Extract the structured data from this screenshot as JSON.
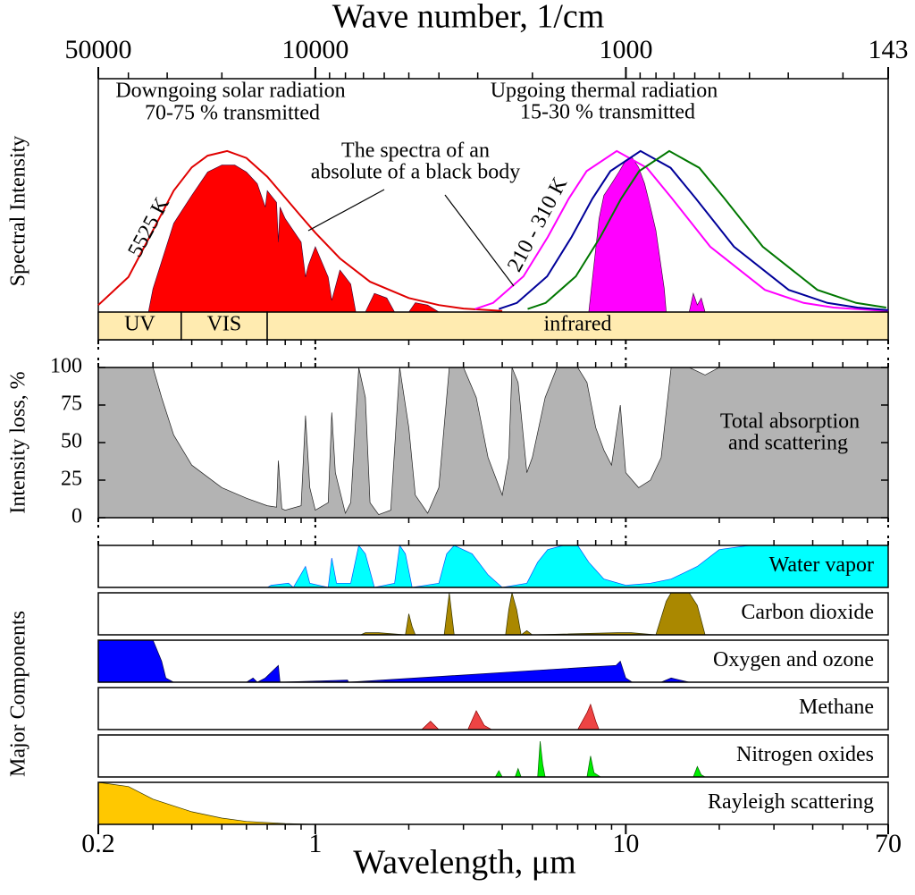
{
  "chart_data": [
    {
      "type": "axis",
      "xlabel": "Wave number, 1/cm",
      "xscale": "log",
      "xlim": [
        50000,
        143
      ],
      "xticks": [
        50000,
        10000,
        1000,
        143
      ],
      "minor_xticks": [
        40000,
        30000,
        20000,
        9000,
        8000,
        7000,
        6000,
        5000,
        4000,
        3000,
        2000,
        900,
        800,
        700,
        600,
        500,
        400,
        300,
        200
      ]
    },
    {
      "type": "spectrum",
      "ylabel": "Spectral Intensity",
      "xscale": "log",
      "xlim": [
        0.2,
        70
      ],
      "ylim": [
        0,
        1
      ],
      "annotations": [
        "Downgoing solar radiation",
        "70-75 % transmitted",
        "Upgoing thermal radiation",
        "15-30 % transmitted",
        "The spectra of an",
        "absolute of a black body",
        "5525 K",
        "210 - 310 K"
      ],
      "bands": [
        {
          "label": "UV",
          "from": 0.2,
          "to": 0.37
        },
        {
          "label": "VIS",
          "from": 0.37,
          "to": 0.7
        },
        {
          "label": "infrared",
          "from": 0.7,
          "to": 70
        }
      ],
      "band_color": "#ffebb0",
      "series": [
        {
          "style": "area",
          "color": "#ff0000",
          "x": [
            0.29,
            0.3,
            0.35,
            0.4,
            0.45,
            0.5,
            0.55,
            0.6,
            0.65,
            0.69,
            0.7,
            0.75,
            0.76,
            0.77,
            0.8,
            0.9,
            0.93,
            0.95,
            1.0,
            1.1,
            1.13,
            1.2,
            1.3,
            1.35,
            1.45,
            1.55,
            1.7,
            1.8,
            2.0,
            2.1,
            2.3,
            2.5
          ],
          "values": [
            0,
            0.1,
            0.38,
            0.5,
            0.6,
            0.63,
            0.63,
            0.6,
            0.55,
            0.45,
            0.52,
            0.47,
            0.3,
            0.45,
            0.4,
            0.3,
            0.15,
            0.2,
            0.28,
            0.15,
            0.05,
            0.18,
            0.12,
            0,
            0,
            0.08,
            0.06,
            0,
            0,
            0.04,
            0.03,
            0
          ]
        },
        {
          "style": "area",
          "color": "#ff00ff",
          "x": [
            7.6,
            8.2,
            8.5,
            9,
            9.5,
            10,
            10.5,
            11,
            11.5,
            12,
            12.5,
            13.3,
            13.5,
            16,
            16.5,
            17,
            17.5,
            18
          ],
          "values": [
            0,
            0.4,
            0.5,
            0.55,
            0.6,
            0.65,
            0.66,
            0.62,
            0.55,
            0.45,
            0.35,
            0.1,
            0,
            0,
            0.08,
            0.03,
            0.06,
            0
          ]
        },
        {
          "style": "line",
          "name": "5525 K",
          "color": "#e00000",
          "x": [
            0.2,
            0.25,
            0.3,
            0.35,
            0.4,
            0.45,
            0.52,
            0.6,
            0.7,
            0.8,
            0.9,
            1.0,
            1.2,
            1.5,
            2,
            2.5,
            3,
            4
          ],
          "values": [
            0.03,
            0.15,
            0.35,
            0.52,
            0.62,
            0.67,
            0.69,
            0.66,
            0.58,
            0.49,
            0.41,
            0.34,
            0.23,
            0.13,
            0.06,
            0.03,
            0.015,
            0.005
          ]
        },
        {
          "style": "line",
          "color": "#ff00ff",
          "x": [
            3.27,
            3.74,
            4.68,
            5.61,
            6.55,
            7.48,
            9.35,
            11.69,
            14.03,
            18.7,
            28.05,
            37.4,
            46.75,
            70
          ],
          "values": [
            0.013,
            0.039,
            0.153,
            0.322,
            0.486,
            0.604,
            0.69,
            0.618,
            0.49,
            0.28,
            0.095,
            0.039,
            0.019,
            0.004
          ]
        },
        {
          "style": "line",
          "color": "#000099",
          "x": [
            3.9,
            4.46,
            5.58,
            6.69,
            7.81,
            8.92,
            11.15,
            13.94,
            16.73,
            22.3,
            33.45,
            44.6,
            55.75,
            70
          ],
          "values": [
            0.013,
            0.039,
            0.153,
            0.322,
            0.486,
            0.604,
            0.69,
            0.618,
            0.49,
            0.28,
            0.095,
            0.039,
            0.019,
            0.008
          ]
        },
        {
          "style": "line",
          "color": "#007700",
          "x": [
            4.83,
            5.52,
            6.9,
            8.28,
            9.66,
            11.04,
            13.8,
            17.25,
            20.7,
            27.6,
            41.4,
            55.2,
            69
          ],
          "values": [
            0.013,
            0.039,
            0.153,
            0.322,
            0.486,
            0.604,
            0.69,
            0.618,
            0.49,
            0.28,
            0.095,
            0.039,
            0.019
          ]
        }
      ]
    },
    {
      "type": "area",
      "ylabel": "Intensity loss, %",
      "xscale": "log",
      "xlim": [
        0.2,
        70
      ],
      "ylim": [
        0,
        100
      ],
      "yticks": [
        0,
        25,
        50,
        75,
        100
      ],
      "color": "#b3b3b3",
      "annotations": [
        "Total absorption",
        "and scattering"
      ],
      "x": [
        0.2,
        0.3,
        0.32,
        0.35,
        0.4,
        0.5,
        0.6,
        0.7,
        0.75,
        0.76,
        0.78,
        0.8,
        0.9,
        0.93,
        0.96,
        1.0,
        1.1,
        1.13,
        1.16,
        1.25,
        1.3,
        1.38,
        1.45,
        1.5,
        1.6,
        1.75,
        1.87,
        2.0,
        2.1,
        2.3,
        2.5,
        2.7,
        3.0,
        3.3,
        3.6,
        4.0,
        4.2,
        4.3,
        4.5,
        4.8,
        5.0,
        5.5,
        6.0,
        6.5,
        7.0,
        7.5,
        8.0,
        8.5,
        9.0,
        9.6,
        10,
        11,
        12,
        13,
        14,
        16,
        18,
        20,
        30,
        70
      ],
      "values": [
        100,
        100,
        80,
        55,
        35,
        20,
        13,
        8,
        7,
        38,
        6,
        5,
        8,
        68,
        20,
        5,
        10,
        70,
        30,
        3,
        10,
        100,
        80,
        10,
        2,
        5,
        100,
        60,
        15,
        3,
        20,
        100,
        100,
        80,
        40,
        15,
        40,
        100,
        90,
        30,
        40,
        80,
        100,
        100,
        100,
        90,
        60,
        45,
        35,
        75,
        30,
        20,
        25,
        40,
        100,
        100,
        95,
        100,
        100,
        100
      ]
    },
    {
      "type": "panels",
      "ylabel": "Major Components",
      "xscale": "log",
      "xlim": [
        0.2,
        70
      ],
      "ylim": [
        0,
        1
      ],
      "panels": [
        {
          "name": "Water vapor",
          "color": "#00ffff",
          "edge": "#0055ff",
          "x": [
            0.7,
            0.72,
            0.82,
            0.85,
            0.93,
            0.96,
            1.1,
            1.13,
            1.17,
            1.3,
            1.38,
            1.45,
            1.55,
            1.8,
            1.87,
            1.95,
            2.05,
            2.5,
            2.65,
            2.8,
            3.2,
            3.6,
            4.0,
            4.8,
            5.2,
            5.6,
            6.3,
            7.0,
            7.6,
            8.5,
            10,
            12,
            14,
            17,
            20,
            25,
            70
          ],
          "values": [
            0,
            0.05,
            0.1,
            0,
            0.5,
            0.1,
            0,
            0.7,
            0.1,
            0.1,
            1,
            0.8,
            0,
            0.1,
            1,
            0.8,
            0,
            0.1,
            0.8,
            1,
            0.8,
            0.3,
            0,
            0.1,
            0.6,
            0.9,
            1,
            1,
            0.6,
            0.2,
            0.05,
            0.1,
            0.2,
            0.5,
            0.9,
            1,
            1
          ]
        },
        {
          "name": "Carbon dioxide",
          "color": "#aa8800",
          "edge": "#333300",
          "x": [
            1.4,
            1.45,
            1.6,
            1.95,
            2.0,
            2.05,
            2.1,
            2.6,
            2.7,
            2.8,
            4.1,
            4.2,
            4.3,
            4.45,
            4.6,
            4.8,
            5.0,
            9.4,
            10.4,
            12.5,
            13.5,
            14,
            16,
            17,
            18
          ],
          "values": [
            0,
            0.05,
            0.05,
            0,
            0.5,
            0.2,
            0,
            0,
            1,
            0,
            0,
            0.6,
            1,
            0.6,
            0,
            0.1,
            0,
            0.05,
            0.05,
            0,
            0.8,
            1,
            1,
            0.7,
            0
          ]
        },
        {
          "name": "Oxygen and ozone",
          "color": "#0000ff",
          "edge": "#000044",
          "x": [
            0.2,
            0.26,
            0.3,
            0.32,
            0.33,
            0.35,
            0.6,
            0.63,
            0.65,
            0.69,
            0.76,
            0.77,
            1.27,
            1.28,
            9.3,
            9.6,
            10,
            10.5,
            13,
            14,
            16,
            70
          ],
          "values": [
            1,
            1,
            1,
            0.5,
            0.1,
            0,
            0,
            0.1,
            0,
            0.1,
            0.4,
            0,
            0.05,
            0,
            0.4,
            0.5,
            0.1,
            0,
            0,
            0.1,
            0,
            0
          ]
        },
        {
          "name": "Methane",
          "color": "#ee4444",
          "edge": "#880000",
          "x": [
            2.2,
            2.35,
            2.5,
            3.1,
            3.3,
            3.5,
            3.7,
            7.0,
            7.5,
            7.7,
            8.0,
            8.2
          ],
          "values": [
            0,
            0.2,
            0,
            0,
            0.45,
            0.1,
            0,
            0,
            0.4,
            0.6,
            0.2,
            0
          ]
        },
        {
          "name": "Nitrogen oxides",
          "color": "#00ee00",
          "edge": "#006600",
          "x": [
            3.8,
            3.9,
            4.0,
            4.4,
            4.5,
            4.6,
            5.2,
            5.3,
            5.4,
            5.5,
            7.5,
            7.7,
            7.9,
            8.3,
            16.5,
            17,
            17.5,
            18
          ],
          "values": [
            0,
            0.15,
            0,
            0,
            0.2,
            0,
            0,
            0.85,
            0.3,
            0,
            0,
            0.5,
            0.1,
            0,
            0,
            0.25,
            0.05,
            0
          ]
        },
        {
          "name": "Rayleigh scattering",
          "color": "#ffc800",
          "edge": "#333300",
          "x": [
            0.2,
            0.25,
            0.3,
            0.4,
            0.5,
            0.6,
            0.8,
            1.0
          ],
          "values": [
            1,
            0.9,
            0.6,
            0.3,
            0.15,
            0.07,
            0.02,
            0
          ]
        }
      ]
    },
    {
      "type": "axis",
      "xlabel": "Wavelength, μm",
      "xscale": "log",
      "xlim": [
        0.2,
        70
      ],
      "xticks": [
        0.2,
        1,
        10,
        70
      ],
      "minor_xticks": [
        0.3,
        0.4,
        0.5,
        0.6,
        0.7,
        0.8,
        0.9,
        2,
        3,
        4,
        5,
        6,
        7,
        8,
        9,
        20,
        30,
        40,
        50,
        60
      ]
    }
  ]
}
